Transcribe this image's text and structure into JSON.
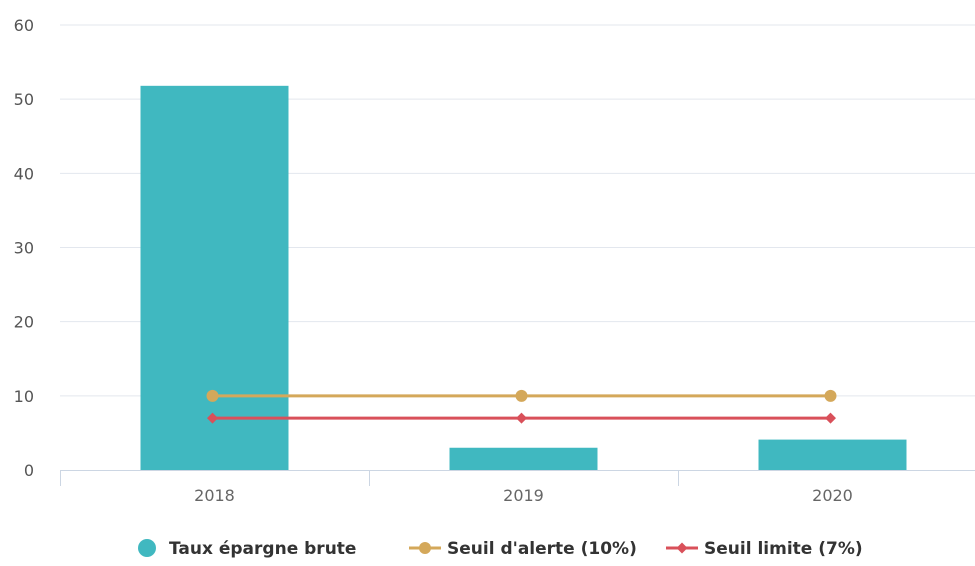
{
  "chart_data": {
    "type": "bar",
    "title": "",
    "xlabel": "",
    "ylabel": "",
    "categories": [
      "2018",
      "2019",
      "2020"
    ],
    "ylim": [
      0,
      60
    ],
    "yticks": [
      0,
      10,
      20,
      30,
      40,
      50,
      60
    ],
    "grid": true,
    "legend_position": "bottom-center",
    "series": [
      {
        "name": "Taux épargne brute",
        "type": "bar",
        "color": "#40b8c0",
        "marker": "circle",
        "values": [
          51.8,
          3.0,
          4.1
        ]
      },
      {
        "name": "Seuil d'alerte (10%)",
        "type": "line",
        "color": "#d4a85a",
        "marker": "circle",
        "values": [
          10,
          10,
          10
        ]
      },
      {
        "name": "Seuil limite (7%)",
        "type": "line",
        "color": "#d9505a",
        "marker": "diamond",
        "values": [
          7,
          7,
          7
        ]
      }
    ]
  }
}
